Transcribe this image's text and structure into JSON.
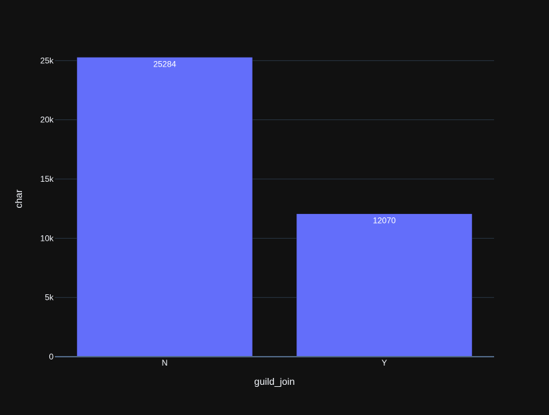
{
  "chart_data": {
    "type": "bar",
    "categories": [
      "N",
      "Y"
    ],
    "values": [
      25284,
      12070
    ],
    "value_labels": [
      "25284",
      "12070"
    ],
    "title": "",
    "xlabel": "guild_join",
    "ylabel": "char",
    "ylim": [
      0,
      26000
    ],
    "y_ticks": [
      0,
      5000,
      10000,
      15000,
      20000,
      25000
    ],
    "y_tick_labels": [
      "0",
      "5k",
      "10k",
      "15k",
      "20k",
      "25k"
    ],
    "grid": true,
    "legend": "none",
    "colors": {
      "background": "#111111",
      "bar": "#636efa",
      "grid": "#283442",
      "zeroline": "#506784",
      "text": "#f2f5fa"
    }
  }
}
